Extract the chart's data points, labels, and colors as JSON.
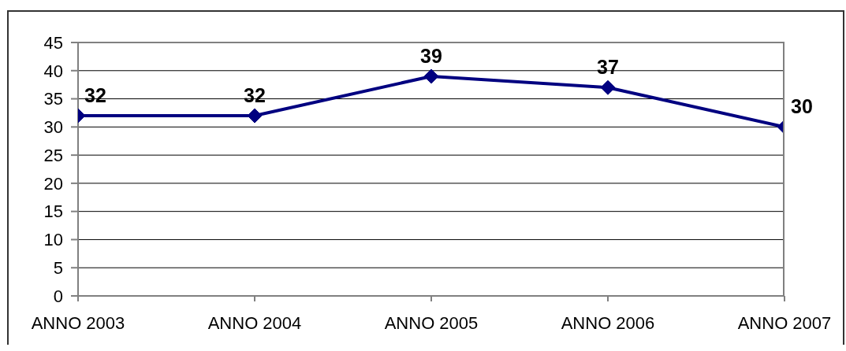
{
  "chart_data": {
    "type": "line",
    "categories": [
      "ANNO 2003",
      "ANNO 2004",
      "ANNO 2005",
      "ANNO 2006",
      "ANNO 2007"
    ],
    "series": [
      {
        "color": "#000080",
        "values": [
          32,
          32,
          39,
          37,
          30
        ]
      }
    ],
    "ylim": [
      0,
      45
    ],
    "yticks": [
      0,
      5,
      10,
      15,
      20,
      25,
      30,
      35,
      40,
      45
    ],
    "grid": "y",
    "marker": "diamond",
    "line_style": "solid",
    "data_labels": true
  }
}
